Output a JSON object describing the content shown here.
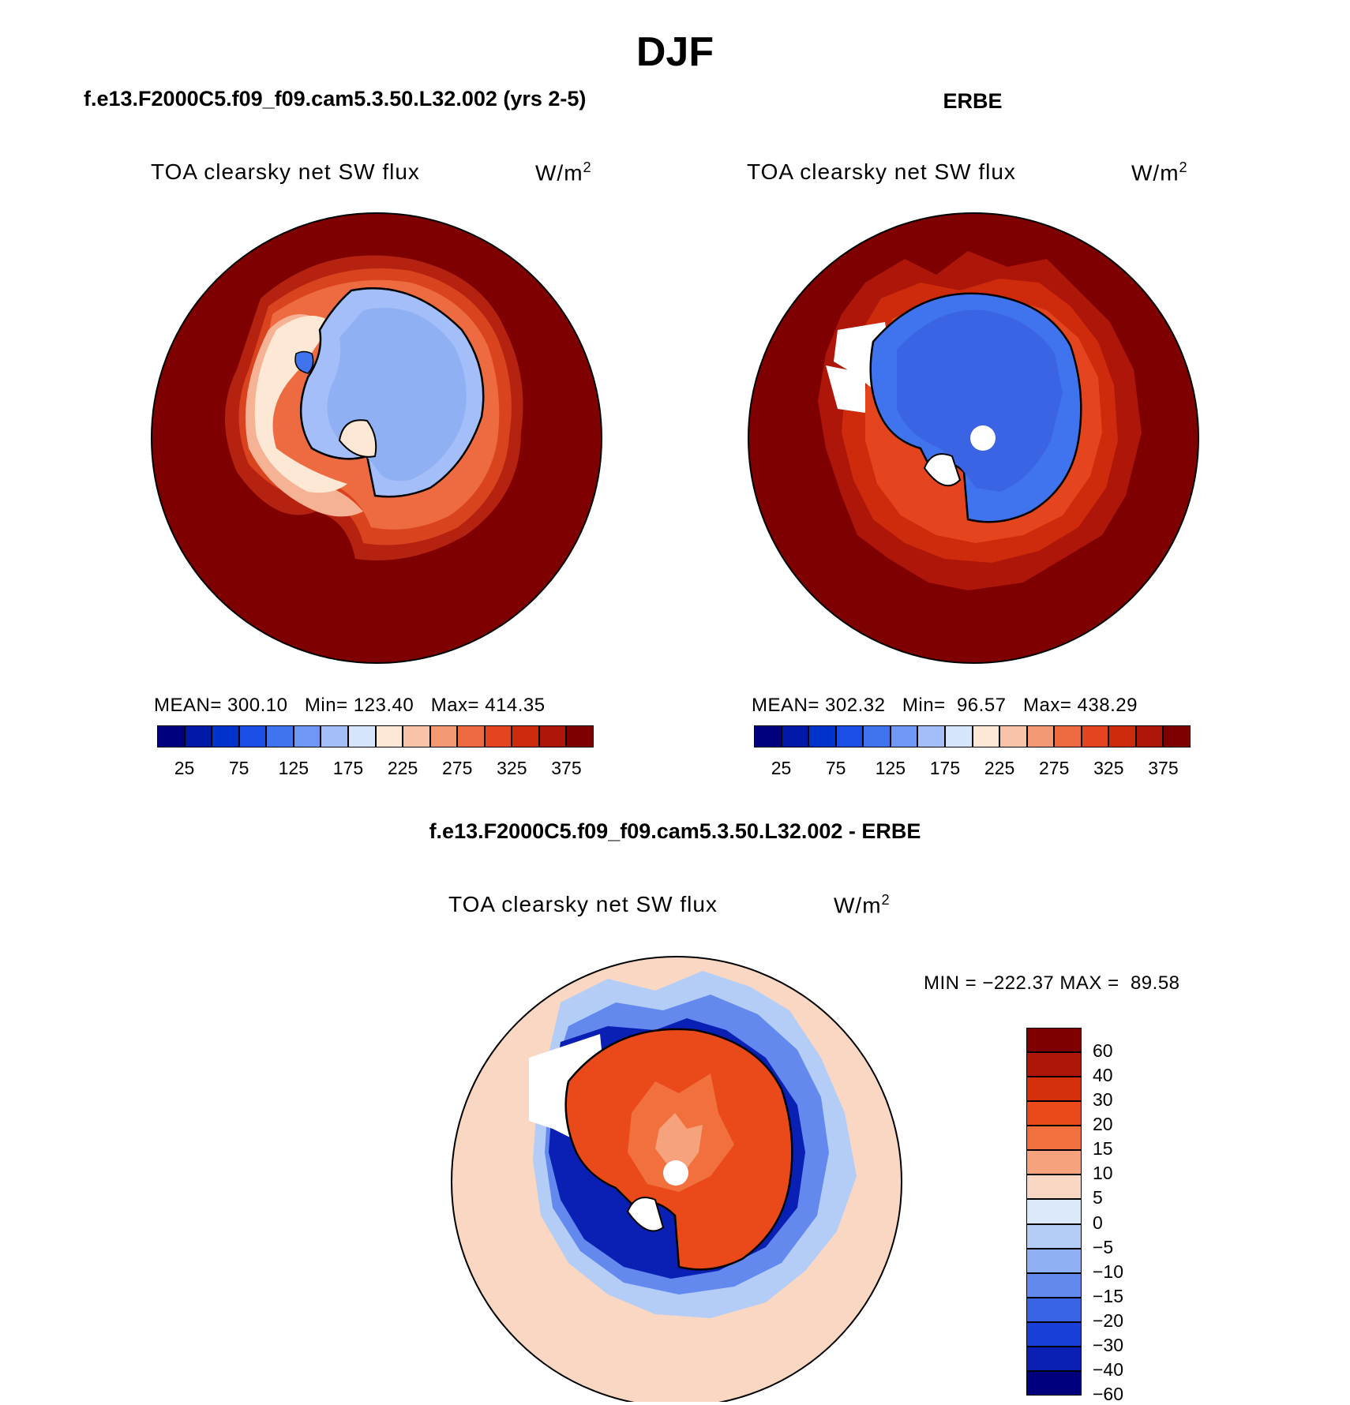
{
  "page_title": "DJF",
  "panels": [
    {
      "title": "f.e13.F2000C5.f09_f09.cam5.3.50.L32.002 (yrs 2-5)",
      "variable": "TOA clearsky net SW flux",
      "units": "W/m",
      "units_sup": "2",
      "stats": "MEAN= 300.10   Min= 123.40   Max= 414.35"
    },
    {
      "title": "ERBE",
      "variable": "TOA clearsky net SW flux",
      "units": "W/m",
      "units_sup": "2",
      "stats": "MEAN= 302.32   Min=  96.57   Max= 438.29"
    },
    {
      "title": "f.e13.F2000C5.f09_f09.cam5.3.50.L32.002 - ERBE",
      "variable": "TOA clearsky net SW flux",
      "units": "W/m",
      "units_sup": "2",
      "stats": "MIN = −222.37 MAX =  89.58"
    }
  ],
  "abs_colorbar": {
    "colors": [
      "#00007f",
      "#0019a6",
      "#0033cc",
      "#1a4ee6",
      "#4073ee",
      "#6f97f4",
      "#a3bef8",
      "#d6e5fb",
      "#fde8d6",
      "#f8c3a8",
      "#f29873",
      "#ee6b41",
      "#e5451e",
      "#cd2b0b",
      "#ad1608",
      "#7f0000"
    ],
    "labels": [
      "25",
      "75",
      "125",
      "175",
      "225",
      "275",
      "325",
      "375"
    ]
  },
  "diff_colorbar": {
    "colors": [
      "#7f0000",
      "#ad1608",
      "#d4300c",
      "#ea4a1a",
      "#f2703e",
      "#f6a27c",
      "#fad7c2",
      "#dbe9fb",
      "#b4cdf6",
      "#8fb0f2",
      "#6389ee",
      "#3a64e4",
      "#1a3fd6",
      "#0a1fb3",
      "#00007f"
    ],
    "labels": [
      "60",
      "40",
      "30",
      "20",
      "15",
      "10",
      "5",
      "0",
      "−5",
      "−10",
      "−15",
      "−20",
      "−30",
      "−40",
      "−60"
    ]
  },
  "map_colors": {
    "ocean_deep": "#7f0000",
    "coast": "#000000"
  }
}
